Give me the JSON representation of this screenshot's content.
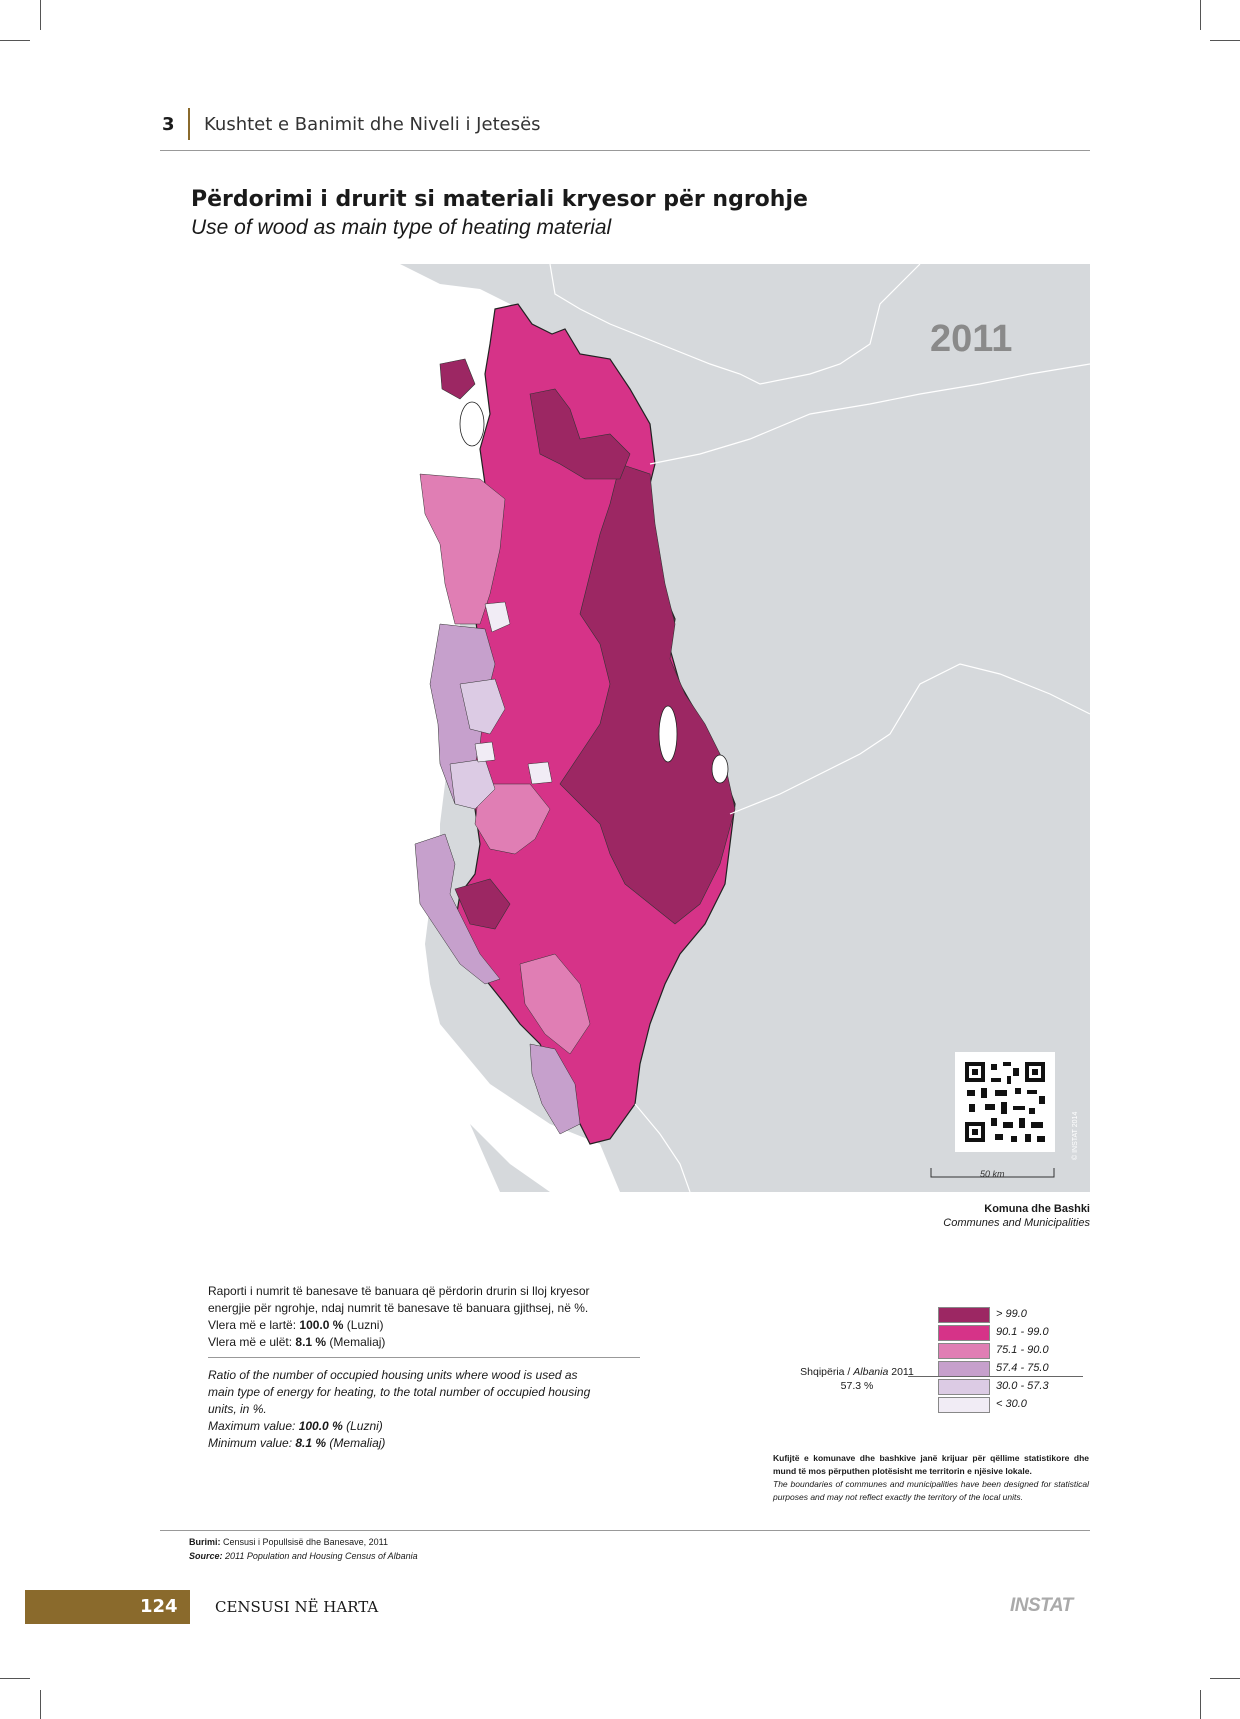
{
  "header": {
    "chapter_number": "3",
    "chapter_title": "Kushtet e Banimit dhe Niveli i Jetesës"
  },
  "title": {
    "sq": "Përdorimi i drurit si materiali kryesor për ngrohje",
    "en": "Use of wood as main type of heating material"
  },
  "map": {
    "year": "2011",
    "scale_label": "50 km",
    "copyright": "© INSTAT 2014",
    "units_sq": "Komuna dhe Bashki",
    "units_en": "Communes and Municipalities",
    "colors": {
      "background": "#d6d9dc",
      "land": "#e3e4e6",
      "sea": "#ffffff",
      "border": "#ffffff"
    }
  },
  "description": {
    "sq_line1": "Raporti i numrit të banesave të banuara që përdorin drurin si lloj kryesor",
    "sq_line2": "energjie për ngrohje, ndaj numrit të banesave të banuara gjithsej, në %.",
    "sq_max_label": "Vlera më e lartë:",
    "sq_max_value": "100.0 %",
    "sq_max_place": "(Luzni)",
    "sq_min_label": "Vlera më e ulët:",
    "sq_min_value": "8.1 %",
    "sq_min_place": "(Memaliaj)",
    "en_line1": "Ratio of the number of occupied housing units where wood is used as",
    "en_line2": "main type of energy for heating, to the total number of occupied housing",
    "en_line3": "units, in %.",
    "en_max_label": "Maximum value:",
    "en_max_value": "100.0 %",
    "en_max_place": "(Luzni)",
    "en_min_label": "Minimum value:",
    "en_min_value": "8.1 %",
    "en_min_place": "(Memaliaj)"
  },
  "legend": {
    "classes": [
      {
        "label": "> 99.0",
        "color": "#9c2763"
      },
      {
        "label": "90.1 - 99.0",
        "color": "#d63388"
      },
      {
        "label": "75.1 - 90.0",
        "color": "#e07eb4"
      },
      {
        "label": "57.4 - 75.0",
        "color": "#c6a0cc"
      },
      {
        "label": "30.0 - 57.3",
        "color": "#dccbe4"
      },
      {
        "label": "< 30.0",
        "color": "#f1ecf5"
      }
    ],
    "national_label_prefix": "Shqipëria /",
    "national_label_en": "Albania",
    "national_label_year": "2011",
    "national_value": "57.3 %"
  },
  "disclaimer": {
    "sq": "Kufijtë e komunave dhe bashkive janë krijuar për qëllime statistikore dhe mund të mos përputhen plotësisht me territorin e njësive lokale.",
    "en": "The boundaries of communes and municipalities have been designed for statistical purposes and may not reflect exactly the territory of the local units."
  },
  "source": {
    "sq_label": "Burimi:",
    "sq_text": "Censusi i Popullsisë dhe Banesave, 2011",
    "en_label": "Source:",
    "en_text": "2011 Population and Housing Census of Albania"
  },
  "footer": {
    "page_number": "124",
    "title": "CENSUSI NË HARTA",
    "logo": "INSTAT"
  }
}
